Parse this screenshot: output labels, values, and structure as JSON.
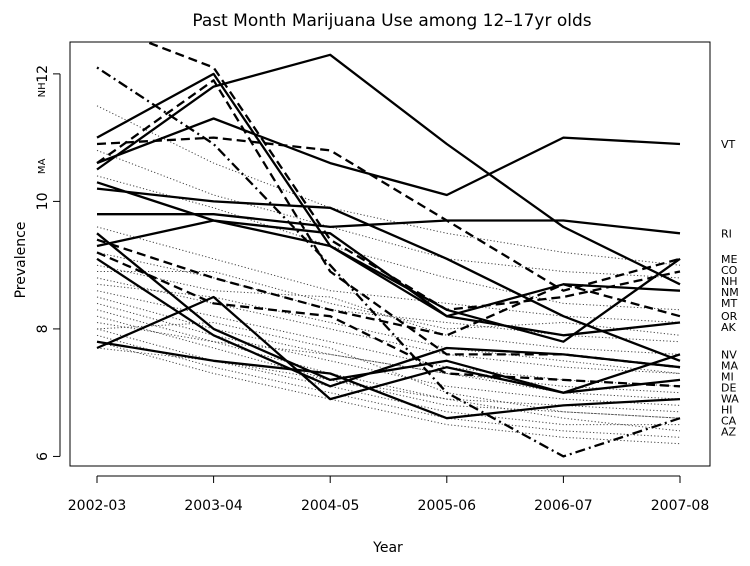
{
  "chart_data": {
    "type": "line",
    "title": "Past Month Marijuana Use among 12–17yr olds",
    "xlabel": "Year",
    "ylabel": "Prevalence",
    "categories": [
      "2002-03",
      "2003-04",
      "2004-05",
      "2005-06",
      "2006-07",
      "2007-08"
    ],
    "y_ticks": [
      6,
      8,
      10,
      12
    ],
    "ylim": [
      5.85,
      12.5
    ],
    "grid": false,
    "series": [
      {
        "name": "VT",
        "style": "solid",
        "values": [
          10.6,
          11.3,
          10.6,
          10.1,
          11.0,
          10.9
        ]
      },
      {
        "name": "RI",
        "style": "solid",
        "values": [
          9.8,
          9.8,
          9.6,
          9.7,
          9.7,
          9.5
        ]
      },
      {
        "name": "ME",
        "style": "solid",
        "values": [
          10.3,
          9.7,
          9.3,
          8.3,
          7.8,
          9.1
        ]
      },
      {
        "name": "CO",
        "style": "dashed",
        "values": [
          10.9,
          11.0,
          10.8,
          9.7,
          8.6,
          9.1
        ]
      },
      {
        "name": "MT",
        "style": "solid",
        "values": [
          9.3,
          9.7,
          9.5,
          8.2,
          8.7,
          8.6
        ]
      },
      {
        "name": "OR",
        "style": "dashed",
        "values": [
          9.4,
          8.8,
          8.3,
          7.9,
          8.7,
          8.2
        ]
      },
      {
        "name": "NM",
        "style": "solid",
        "values": [
          10.5,
          11.8,
          12.3,
          10.9,
          9.6,
          8.7
        ]
      },
      {
        "name": "AK",
        "style": "solid",
        "values": [
          11.0,
          12.0,
          9.3,
          8.2,
          7.9,
          8.1
        ]
      },
      {
        "name": "NV",
        "style": "solid",
        "values": [
          9.5,
          8.0,
          7.2,
          7.5,
          7.0,
          7.6
        ]
      },
      {
        "name": "MI",
        "style": "dashed",
        "values": [
          10.6,
          11.9,
          8.9,
          7.6,
          7.6,
          7.4
        ]
      },
      {
        "name": "DE",
        "style": "solid",
        "values": [
          9.1,
          7.9,
          7.1,
          7.7,
          7.6,
          7.4
        ]
      },
      {
        "name": "WA",
        "style": "solid",
        "values": [
          7.7,
          8.5,
          6.9,
          7.4,
          7.0,
          7.2
        ]
      },
      {
        "name": "HI",
        "style": "dashed",
        "values": [
          9.2,
          8.4,
          8.2,
          7.3,
          7.2,
          7.1
        ]
      },
      {
        "name": "CA",
        "style": "solid",
        "values": [
          7.8,
          7.5,
          7.3,
          6.6,
          6.8,
          6.9
        ]
      },
      {
        "name": "AZ",
        "style": "dotdash",
        "values": [
          12.1,
          10.9,
          9.0,
          7.0,
          6.0,
          6.6
        ]
      },
      {
        "name": "NH",
        "style": "dashed",
        "values": [
          12.8,
          12.1,
          9.4,
          8.3,
          8.5,
          8.9
        ]
      },
      {
        "name": "MA",
        "style": "solid",
        "values": [
          10.2,
          10.0,
          9.9,
          9.1,
          8.2,
          7.5
        ]
      }
    ],
    "background_lines": [
      [
        9.2,
        8.8,
        8.3,
        8.1,
        7.9,
        7.8
      ],
      [
        9.0,
        8.6,
        8.5,
        7.9,
        7.7,
        7.6
      ],
      [
        8.8,
        8.4,
        8.0,
        7.6,
        7.4,
        7.3
      ],
      [
        8.6,
        8.2,
        7.8,
        7.4,
        7.2,
        7.1
      ],
      [
        8.5,
        8.0,
        7.6,
        7.3,
        7.0,
        6.9
      ],
      [
        8.4,
        7.9,
        7.5,
        7.1,
        6.9,
        6.8
      ],
      [
        8.3,
        7.8,
        7.3,
        6.9,
        6.8,
        6.7
      ],
      [
        8.2,
        7.7,
        7.2,
        6.8,
        6.7,
        6.6
      ],
      [
        8.0,
        7.5,
        7.1,
        6.7,
        6.5,
        6.5
      ],
      [
        7.9,
        7.4,
        7.0,
        6.6,
        6.4,
        6.3
      ],
      [
        7.8,
        7.3,
        6.9,
        6.5,
        6.3,
        6.2
      ],
      [
        7.7,
        7.5,
        7.2,
        6.9,
        6.6,
        6.4
      ],
      [
        8.1,
        7.8,
        7.6,
        7.3,
        7.1,
        7.0
      ],
      [
        10.8,
        10.1,
        9.6,
        9.1,
        8.9,
        8.8
      ],
      [
        10.4,
        9.9,
        9.3,
        8.8,
        8.4,
        8.3
      ],
      [
        11.5,
        10.6,
        9.9,
        9.5,
        9.2,
        9.0
      ],
      [
        8.9,
        8.9,
        8.4,
        8.0,
        8.1,
        7.9
      ],
      [
        8.7,
        8.5,
        8.1,
        7.7,
        7.5,
        7.3
      ],
      [
        9.6,
        9.1,
        8.6,
        8.4,
        8.2,
        8.1
      ],
      [
        8.0,
        8.1,
        7.7,
        7.0,
        6.7,
        6.6
      ]
    ],
    "left_labels": [
      {
        "text": "NH",
        "y": 11.75
      },
      {
        "text": "MA",
        "y": 10.55
      }
    ]
  }
}
